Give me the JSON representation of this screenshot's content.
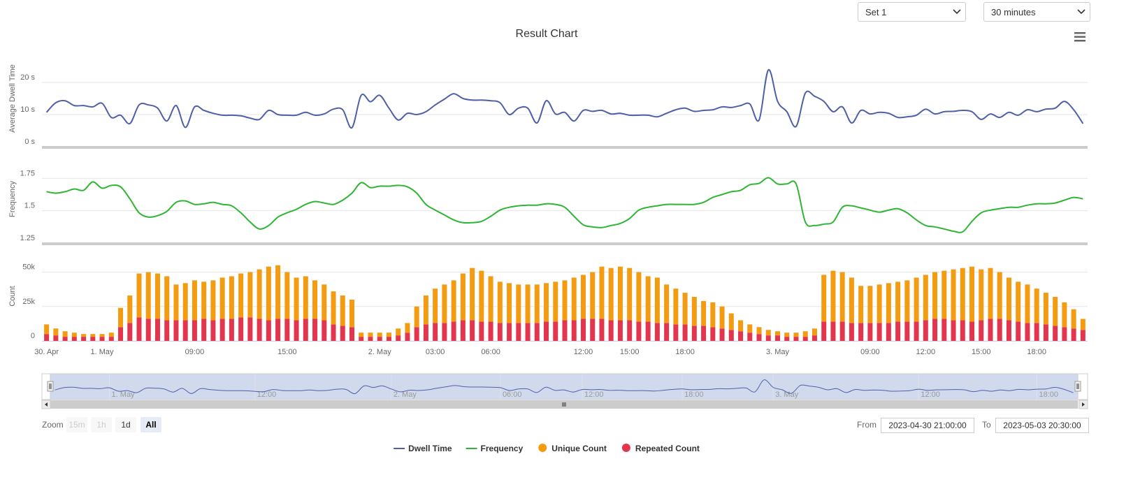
{
  "title": "Result Chart",
  "controls": {
    "set": "Set 1",
    "interval": "30 minutes",
    "zoom_label": "Zoom",
    "zoom_buttons": [
      "15m",
      "1h",
      "1d",
      "All"
    ],
    "from_label": "From",
    "from": "2023-04-30 21:00:00",
    "to_label": "To",
    "to": "2023-05-03 20:30:00"
  },
  "chart_data": [
    {
      "type": "line",
      "ylabel": "Average Dwell Time",
      "ylim": [
        0,
        30
      ],
      "yticks": [
        {
          "value": 0,
          "label": "0 s"
        },
        {
          "value": 10,
          "label": "10 s"
        },
        {
          "value": 20,
          "label": "20 s"
        }
      ],
      "grid": true,
      "series": [
        {
          "name": "Dwell Time",
          "color": "#4f5fa8",
          "values": [
            10.7,
            13.7,
            14.3,
            12.8,
            12.8,
            12.4,
            13.5,
            9.1,
            9.8,
            7.2,
            13,
            13,
            12,
            8,
            12.8,
            6,
            12.4,
            11.3,
            10.4,
            9.8,
            9.8,
            9.6,
            8.9,
            8.5,
            11.3,
            10,
            9.8,
            9.8,
            10.7,
            9.8,
            10.2,
            11.7,
            11.5,
            5.9,
            16,
            14,
            16,
            12,
            8.3,
            10.4,
            10,
            10.9,
            13,
            14.8,
            16.5,
            15,
            14.5,
            14.5,
            14.3,
            13.7,
            10,
            12,
            12,
            7.4,
            14.3,
            10.2,
            10.7,
            8,
            11.3,
            11,
            11.3,
            10.2,
            10.4,
            9.8,
            9.8,
            9.8,
            9.3,
            10.4,
            11.5,
            12,
            11,
            11.3,
            11.5,
            12.4,
            12.2,
            12.8,
            13.3,
            8.3,
            23.9,
            14.1,
            10.9,
            6.3,
            16.7,
            15.7,
            14.1,
            10.9,
            12.4,
            7.4,
            11.3,
            10.2,
            10.7,
            10.4,
            9.1,
            9.3,
            9.8,
            11.7,
            10.2,
            10.9,
            11,
            11.3,
            10.9,
            8.5,
            10.2,
            9.1,
            10.7,
            9.8,
            11.5,
            10.9,
            11.7,
            12,
            14.1,
            11.5,
            7.2
          ]
        }
      ]
    },
    {
      "type": "line",
      "ylabel": "Frequency",
      "ylim": [
        1.25,
        1.93
      ],
      "yticks": [
        1.25,
        1.5,
        1.75
      ],
      "grid": true,
      "series": [
        {
          "name": "Frequency",
          "color": "#2fb534",
          "values": [
            1.647,
            1.636,
            1.647,
            1.668,
            1.658,
            1.723,
            1.674,
            1.696,
            1.685,
            1.592,
            1.484,
            1.451,
            1.462,
            1.495,
            1.565,
            1.576,
            1.549,
            1.554,
            1.565,
            1.549,
            1.538,
            1.484,
            1.413,
            1.359,
            1.386,
            1.451,
            1.484,
            1.511,
            1.549,
            1.571,
            1.56,
            1.549,
            1.582,
            1.636,
            1.717,
            1.679,
            1.69,
            1.69,
            1.696,
            1.685,
            1.636,
            1.549,
            1.505,
            1.467,
            1.429,
            1.408,
            1.408,
            1.418,
            1.457,
            1.505,
            1.527,
            1.538,
            1.543,
            1.543,
            1.554,
            1.549,
            1.527,
            1.457,
            1.391,
            1.375,
            1.37,
            1.386,
            1.402,
            1.44,
            1.505,
            1.527,
            1.538,
            1.549,
            1.549,
            1.549,
            1.549,
            1.565,
            1.603,
            1.625,
            1.647,
            1.658,
            1.701,
            1.712,
            1.755,
            1.707,
            1.707,
            1.707,
            1.413,
            1.386,
            1.397,
            1.413,
            1.527,
            1.538,
            1.522,
            1.505,
            1.489,
            1.505,
            1.516,
            1.484,
            1.429,
            1.386,
            1.375,
            1.359,
            1.342,
            1.337,
            1.418,
            1.484,
            1.505,
            1.516,
            1.527,
            1.527,
            1.543,
            1.554,
            1.554,
            1.56,
            1.582,
            1.603,
            1.592
          ]
        }
      ]
    },
    {
      "type": "bar",
      "stacked": true,
      "ylabel": "Count",
      "ylim": [
        0,
        65000
      ],
      "yticks": [
        0,
        {
          "value": 25000,
          "label": "25k"
        },
        {
          "value": 50000,
          "label": "50k"
        }
      ],
      "grid": true,
      "categories": [
        "30. Apr",
        null,
        null,
        null,
        null,
        null,
        "1. May",
        null,
        null,
        null,
        null,
        null,
        null,
        null,
        null,
        null,
        "09:00",
        null,
        null,
        null,
        null,
        null,
        null,
        null,
        null,
        null,
        "15:00",
        null,
        null,
        null,
        null,
        null,
        null,
        null,
        null,
        null,
        "2. May",
        null,
        null,
        null,
        null,
        null,
        "03:00",
        null,
        null,
        null,
        null,
        null,
        "06:00",
        null,
        null,
        null,
        null,
        null,
        null,
        null,
        null,
        null,
        "12:00",
        null,
        null,
        null,
        null,
        "15:00",
        null,
        null,
        null,
        null,
        null,
        "18:00",
        null,
        null,
        null,
        null,
        null,
        null,
        null,
        null,
        null,
        "3. May",
        null,
        null,
        null,
        null,
        null,
        null,
        null,
        null,
        null,
        "09:00",
        null,
        null,
        null,
        null,
        null,
        "12:00",
        null,
        null,
        null,
        null,
        null,
        "15:00",
        null,
        null,
        null,
        null,
        null,
        "18:00",
        null,
        null,
        null,
        null,
        null
      ],
      "series": [
        {
          "name": "Unique Count",
          "color": "#f39c12",
          "values": [
            7000,
            5000,
            4000,
            3000,
            2000,
            2000,
            2000,
            3000,
            14000,
            20000,
            32000,
            34000,
            33000,
            32000,
            26000,
            27000,
            29000,
            27000,
            29000,
            30000,
            31000,
            32000,
            33000,
            36000,
            39000,
            39000,
            34000,
            31000,
            31000,
            28000,
            26000,
            24000,
            22000,
            20000,
            3000,
            3000,
            3000,
            3000,
            5000,
            7000,
            15000,
            21000,
            25000,
            28000,
            30000,
            34000,
            38000,
            37000,
            33000,
            30000,
            29000,
            28000,
            28000,
            28000,
            28000,
            29000,
            29000,
            31000,
            32000,
            34000,
            38000,
            38000,
            39000,
            38000,
            36000,
            33000,
            33000,
            28000,
            26000,
            23000,
            21000,
            18000,
            18000,
            16000,
            12000,
            8000,
            6000,
            5000,
            4000,
            3000,
            3000,
            3000,
            4000,
            5000,
            34000,
            37000,
            36000,
            33000,
            27000,
            27000,
            28000,
            29000,
            29000,
            30000,
            32000,
            33000,
            34000,
            35000,
            37000,
            38000,
            40000,
            37000,
            37000,
            34000,
            31000,
            29000,
            28000,
            25000,
            23000,
            21000,
            18000,
            14000,
            8000
          ]
        },
        {
          "name": "Repeated Count",
          "color": "#e4354f",
          "values": [
            5000,
            4000,
            3000,
            3000,
            3000,
            3000,
            3000,
            3000,
            10000,
            13000,
            17000,
            16000,
            16000,
            15000,
            15000,
            15000,
            15000,
            16000,
            15000,
            16000,
            16000,
            17000,
            17000,
            16000,
            15000,
            16000,
            16000,
            15000,
            16000,
            16000,
            15000,
            12000,
            11000,
            10000,
            3000,
            3000,
            3000,
            3000,
            4000,
            6000,
            10000,
            12000,
            13000,
            13000,
            14000,
            15000,
            15000,
            14000,
            14000,
            13000,
            13000,
            13000,
            13000,
            13000,
            14000,
            14000,
            15000,
            15000,
            16000,
            16000,
            16000,
            15000,
            15000,
            15000,
            14000,
            14000,
            13000,
            13000,
            12000,
            12000,
            11000,
            11000,
            10000,
            9000,
            8000,
            7000,
            6000,
            5000,
            4000,
            4000,
            3000,
            3000,
            3000,
            4000,
            14000,
            14000,
            14000,
            13000,
            13000,
            13000,
            13000,
            13000,
            14000,
            14000,
            14000,
            15000,
            16000,
            16000,
            15000,
            15000,
            14000,
            15000,
            16000,
            16000,
            15000,
            14000,
            13000,
            13000,
            12000,
            11000,
            10000,
            9000,
            8000
          ]
        }
      ]
    }
  ],
  "navigator": {
    "categories": [
      null,
      null,
      null,
      null,
      null,
      null,
      "1. May",
      null,
      null,
      null,
      null,
      null,
      null,
      null,
      null,
      null,
      null,
      null,
      null,
      null,
      null,
      null,
      "12:00",
      null,
      null,
      null,
      null,
      null,
      null,
      null,
      null,
      null,
      null,
      null,
      null,
      null,
      null,
      "2. May",
      null,
      null,
      null,
      null,
      null,
      null,
      null,
      null,
      null,
      null,
      null,
      "06:00",
      null,
      null,
      null,
      null,
      null,
      null,
      null,
      null,
      "12:00",
      null,
      null,
      null,
      null,
      null,
      null,
      null,
      null,
      null,
      null,
      "18:00",
      null,
      null,
      null,
      null,
      null,
      null,
      null,
      null,
      null,
      "3. May",
      null,
      null,
      null,
      null,
      null,
      null,
      null,
      null,
      null,
      null,
      null,
      null,
      null,
      null,
      null,
      "12:00",
      null,
      null,
      null,
      null,
      null,
      null,
      null,
      null,
      null,
      null,
      null,
      null,
      "18:00",
      null,
      null,
      null,
      null
    ]
  }
}
